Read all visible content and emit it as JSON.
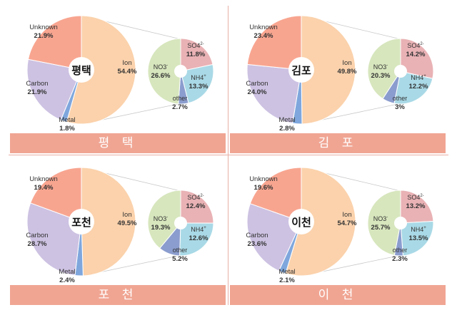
{
  "chart_data": [
    {
      "type": "pie",
      "center_label": "평택",
      "banner": "평 택",
      "main": [
        {
          "label": "Ion",
          "value": "54.4%",
          "pct": 54.4,
          "color": "#fbd2ac"
        },
        {
          "label": "Metal",
          "value": "1.8%",
          "pct": 1.8,
          "color": "#7fa7dd"
        },
        {
          "label": "Carbon",
          "value": "21.9%",
          "pct": 21.9,
          "color": "#cdc2e2"
        },
        {
          "label": "Unknown",
          "value": "21.9%",
          "pct": 21.9,
          "color": "#f8a590"
        }
      ],
      "ion": [
        {
          "label": "SO4",
          "sup": "2-",
          "value": "11.8%",
          "pct": 11.8,
          "color": "#e9b2b5"
        },
        {
          "label": "NH4",
          "sup": "+",
          "value": "13.3%",
          "pct": 13.3,
          "color": "#a9d9e6"
        },
        {
          "label": "other",
          "sup": "",
          "value": "2.7%",
          "pct": 2.7,
          "color": "#8b9dce"
        },
        {
          "label": "NO3",
          "sup": "-",
          "value": "26.6%",
          "pct": 26.6,
          "color": "#d7e6bd"
        }
      ]
    },
    {
      "type": "pie",
      "center_label": "김포",
      "banner": "김 포",
      "main": [
        {
          "label": "Ion",
          "value": "49.8%",
          "pct": 49.8,
          "color": "#fbd2ac"
        },
        {
          "label": "Metal",
          "value": "2.8%",
          "pct": 2.8,
          "color": "#7fa7dd"
        },
        {
          "label": "Carbon",
          "value": "24.0%",
          "pct": 24.0,
          "color": "#cdc2e2"
        },
        {
          "label": "Unknown",
          "value": "23.4%",
          "pct": 23.4,
          "color": "#f8a590"
        }
      ],
      "ion": [
        {
          "label": "SO4",
          "sup": "2-",
          "value": "14.2%",
          "pct": 14.2,
          "color": "#e9b2b5"
        },
        {
          "label": "NH4",
          "sup": "+",
          "value": "12.2%",
          "pct": 12.2,
          "color": "#a9d9e6"
        },
        {
          "label": "other",
          "sup": "",
          "value": "3%",
          "pct": 3.0,
          "color": "#8b9dce"
        },
        {
          "label": "NO3",
          "sup": "-",
          "value": "20.3%",
          "pct": 20.3,
          "color": "#d7e6bd"
        }
      ]
    },
    {
      "type": "pie",
      "center_label": "포천",
      "banner": "포 천",
      "main": [
        {
          "label": "Ion",
          "value": "49.5%",
          "pct": 49.5,
          "color": "#fbd2ac"
        },
        {
          "label": "Metal",
          "value": "2.4%",
          "pct": 2.4,
          "color": "#7fa7dd"
        },
        {
          "label": "Carbon",
          "value": "28.7%",
          "pct": 28.7,
          "color": "#cdc2e2"
        },
        {
          "label": "Unknown",
          "value": "19.4%",
          "pct": 19.4,
          "color": "#f8a590"
        }
      ],
      "ion": [
        {
          "label": "SO4",
          "sup": "2-",
          "value": "12.4%",
          "pct": 12.4,
          "color": "#e9b2b5"
        },
        {
          "label": "NH4",
          "sup": "+",
          "value": "12.6%",
          "pct": 12.6,
          "color": "#a9d9e6"
        },
        {
          "label": "other",
          "sup": "",
          "value": "5.2%",
          "pct": 5.2,
          "color": "#8b9dce"
        },
        {
          "label": "NO3",
          "sup": "-",
          "value": "19.3%",
          "pct": 19.3,
          "color": "#d7e6bd"
        }
      ]
    },
    {
      "type": "pie",
      "center_label": "이천",
      "banner": "이 천",
      "main": [
        {
          "label": "Ion",
          "value": "54.7%",
          "pct": 54.7,
          "color": "#fbd2ac"
        },
        {
          "label": "Metal",
          "value": "2.1%",
          "pct": 2.1,
          "color": "#7fa7dd"
        },
        {
          "label": "Carbon",
          "value": "23.6%",
          "pct": 23.6,
          "color": "#cdc2e2"
        },
        {
          "label": "Unknown",
          "value": "19.6%",
          "pct": 19.6,
          "color": "#f8a590"
        }
      ],
      "ion": [
        {
          "label": "SO4",
          "sup": "2-",
          "value": "13.2%",
          "pct": 13.2,
          "color": "#e9b2b5"
        },
        {
          "label": "NH4",
          "sup": "+",
          "value": "13.5%",
          "pct": 13.5,
          "color": "#a9d9e6"
        },
        {
          "label": "other",
          "sup": "",
          "value": "2.3%",
          "pct": 2.3,
          "color": "#8b9dce"
        },
        {
          "label": "NO3",
          "sup": "-",
          "value": "25.7%",
          "pct": 25.7,
          "color": "#d7e6bd"
        }
      ]
    }
  ]
}
